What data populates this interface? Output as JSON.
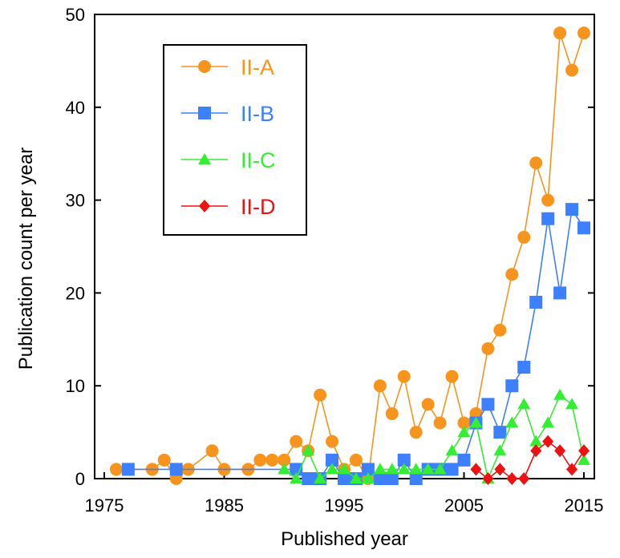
{
  "chart_data": {
    "type": "line",
    "xlabel": "Published year",
    "ylabel": "Publication count per year",
    "xlim": [
      1975,
      2015
    ],
    "ylim": [
      0,
      50
    ],
    "xticks": [
      1975,
      1985,
      1995,
      2005,
      2015
    ],
    "yticks": [
      0,
      10,
      20,
      30,
      40,
      50
    ],
    "grid": false,
    "legend_position": "top-left",
    "series": [
      {
        "name": "II-A",
        "color": "#F7941D",
        "marker": "circle",
        "x": [
          1976,
          1979,
          1980,
          1981,
          1982,
          1984,
          1985,
          1987,
          1988,
          1989,
          1990,
          1991,
          1992,
          1993,
          1994,
          1995,
          1996,
          1997,
          1998,
          1999,
          2000,
          2001,
          2002,
          2003,
          2004,
          2005,
          2006,
          2007,
          2008,
          2009,
          2010,
          2011,
          2012,
          2013,
          2014,
          2015
        ],
        "y": [
          1,
          1,
          2,
          0,
          1,
          3,
          1,
          1,
          2,
          2,
          2,
          4,
          3,
          9,
          4,
          1,
          2,
          0,
          10,
          7,
          11,
          5,
          8,
          6,
          11,
          6,
          7,
          14,
          16,
          22,
          26,
          34,
          30,
          48,
          44,
          48
        ]
      },
      {
        "name": "II-B",
        "color": "#3C7FFF",
        "marker": "square",
        "x": [
          1977,
          1981,
          1991,
          1992,
          1993,
          1994,
          1995,
          1996,
          1997,
          1998,
          1999,
          2000,
          2001,
          2002,
          2003,
          2004,
          2005,
          2006,
          2007,
          2008,
          2009,
          2010,
          2011,
          2012,
          2013,
          2014,
          2015
        ],
        "y": [
          1,
          1,
          1,
          0,
          0,
          2,
          0,
          0,
          1,
          0,
          0,
          2,
          0,
          1,
          1,
          1,
          2,
          6,
          8,
          5,
          10,
          12,
          19,
          28,
          20,
          29,
          27
        ]
      },
      {
        "name": "II-C",
        "color": "#33EE33",
        "marker": "triangle",
        "x": [
          1990,
          1991,
          1992,
          1993,
          1994,
          1995,
          1996,
          1997,
          1998,
          1999,
          2000,
          2001,
          2002,
          2003,
          2004,
          2005,
          2006,
          2007,
          2008,
          2009,
          2010,
          2011,
          2012,
          2013,
          2014,
          2015
        ],
        "y": [
          1,
          0,
          3,
          0,
          1,
          1,
          0,
          0,
          1,
          1,
          1,
          1,
          1,
          1,
          3,
          5,
          6,
          0,
          3,
          6,
          8,
          4,
          6,
          9,
          8,
          2
        ]
      },
      {
        "name": "II-D",
        "color": "#EE1111",
        "marker": "diamond",
        "x": [
          2006,
          2007,
          2008,
          2009,
          2010,
          2011,
          2012,
          2013,
          2014,
          2015
        ],
        "y": [
          1,
          0,
          1,
          0,
          0,
          3,
          4,
          3,
          1,
          3
        ]
      }
    ]
  }
}
